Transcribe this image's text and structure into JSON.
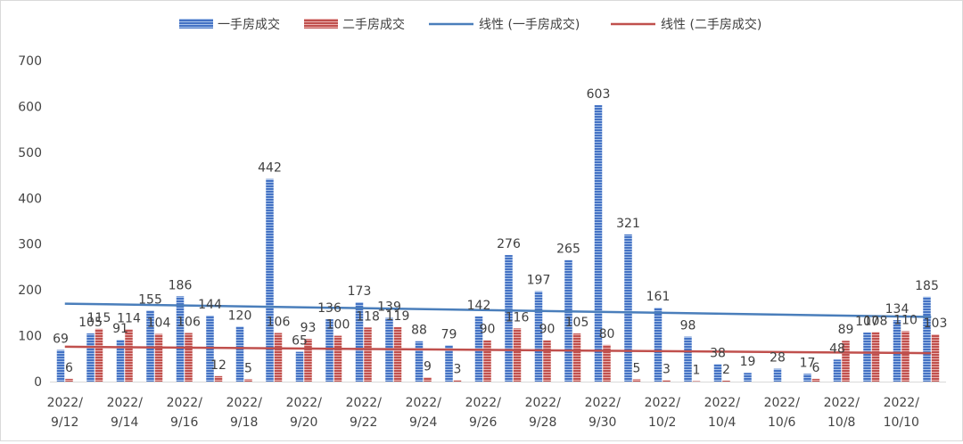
{
  "chart_data": {
    "type": "bar",
    "categories": [
      "2022/9/12",
      "2022/9/13",
      "2022/9/14",
      "2022/9/15",
      "2022/9/16",
      "2022/9/17",
      "2022/9/18",
      "2022/9/19",
      "2022/9/20",
      "2022/9/21",
      "2022/9/22",
      "2022/9/23",
      "2022/9/24",
      "2022/9/25",
      "2022/9/26",
      "2022/9/27",
      "2022/9/28",
      "2022/9/29",
      "2022/9/30",
      "2022/10/1",
      "2022/10/2",
      "2022/10/3",
      "2022/10/4",
      "2022/10/5",
      "2022/10/6",
      "2022/10/7",
      "2022/10/8",
      "2022/10/9",
      "2022/10/10",
      "2022/10/11"
    ],
    "x_tick_labels": [
      {
        "line1": "2022/",
        "line2": "9/12",
        "index": 0
      },
      {
        "line1": "2022/",
        "line2": "9/14",
        "index": 2
      },
      {
        "line1": "2022/",
        "line2": "9/16",
        "index": 4
      },
      {
        "line1": "2022/",
        "line2": "9/18",
        "index": 6
      },
      {
        "line1": "2022/",
        "line2": "9/20",
        "index": 8
      },
      {
        "line1": "2022/",
        "line2": "9/22",
        "index": 10
      },
      {
        "line1": "2022/",
        "line2": "9/24",
        "index": 12
      },
      {
        "line1": "2022/",
        "line2": "9/26",
        "index": 14
      },
      {
        "line1": "2022/",
        "line2": "9/28",
        "index": 16
      },
      {
        "line1": "2022/",
        "line2": "9/30",
        "index": 18
      },
      {
        "line1": "2022/",
        "line2": "10/2",
        "index": 20
      },
      {
        "line1": "2022/",
        "line2": "10/4",
        "index": 22
      },
      {
        "line1": "2022/",
        "line2": "10/6",
        "index": 24
      },
      {
        "line1": "2022/",
        "line2": "10/8",
        "index": 26
      },
      {
        "line1": "2022/",
        "line2": "10/10",
        "index": 28
      }
    ],
    "series": [
      {
        "name": "一手房成交",
        "color": "#4472c4",
        "values": [
          69,
          105,
          91,
          155,
          186,
          144,
          120,
          442,
          65,
          136,
          173,
          139,
          88,
          79,
          142,
          276,
          197,
          265,
          603,
          321,
          161,
          98,
          38,
          19,
          28,
          17,
          48,
          107,
          134,
          185
        ]
      },
      {
        "name": "二手房成交",
        "color": "#c0504d",
        "values": [
          6,
          115,
          114,
          104,
          106,
          12,
          5,
          106,
          93,
          100,
          118,
          119,
          9,
          3,
          90,
          116,
          90,
          105,
          80,
          5,
          3,
          1,
          2,
          null,
          null,
          6,
          89,
          108,
          110,
          103
        ]
      }
    ],
    "trendlines": [
      {
        "name": "线性 (一手房成交)",
        "color": "#4a7ebb",
        "start": 170,
        "end": 141
      },
      {
        "name": "线性 (二手房成交)",
        "color": "#c0504d",
        "start": 76,
        "end": 62
      }
    ],
    "y_ticks": [
      "0",
      "100",
      "200",
      "300",
      "400",
      "500",
      "600",
      "700"
    ],
    "ylim": [
      0,
      700
    ],
    "legend_position": "top"
  }
}
